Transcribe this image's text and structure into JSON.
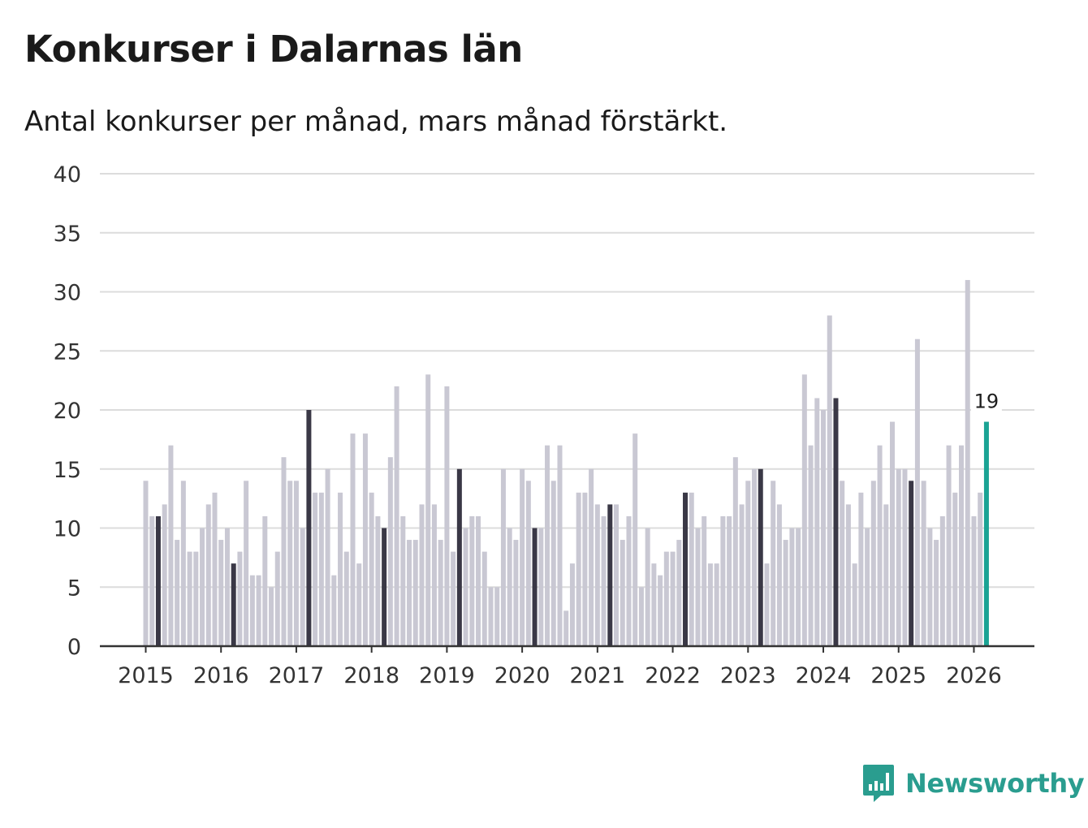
{
  "title": "Konkurser i Dalarnas län",
  "subtitle": "Antal konkurser per månad, mars månad förstärkt.",
  "brand": {
    "name": "Newsworthy",
    "icon": "newsworthy-logo-icon"
  },
  "colors": {
    "normal": "#c9c8d3",
    "march": "#3a3846",
    "latest": "#1aa394",
    "grid": "#dcdcdc",
    "axis": "#333333"
  },
  "chart_data": {
    "type": "bar",
    "title": "Konkurser i Dalarnas län",
    "subtitle": "Antal konkurser per månad, mars månad förstärkt.",
    "xlabel": "",
    "ylabel": "",
    "ylim": [
      0,
      40
    ],
    "yticks": [
      0,
      5,
      10,
      15,
      20,
      25,
      30,
      35,
      40
    ],
    "xtick_labels": [
      "2015",
      "2016",
      "2017",
      "2018",
      "2019",
      "2020",
      "2021",
      "2022",
      "2023",
      "2024",
      "2025",
      "2026"
    ],
    "start": "2015-01",
    "highlight": "March of each year",
    "latest_label": "19",
    "values": [
      14,
      11,
      11,
      12,
      17,
      9,
      14,
      8,
      8,
      10,
      12,
      13,
      9,
      10,
      7,
      8,
      14,
      6,
      6,
      11,
      5,
      8,
      16,
      14,
      14,
      10,
      20,
      13,
      13,
      15,
      6,
      13,
      8,
      18,
      7,
      18,
      13,
      11,
      10,
      16,
      22,
      11,
      9,
      9,
      12,
      23,
      12,
      9,
      22,
      8,
      15,
      10,
      11,
      11,
      8,
      5,
      5,
      15,
      10,
      9,
      15,
      14,
      10,
      10,
      17,
      14,
      17,
      3,
      7,
      13,
      13,
      15,
      12,
      11,
      12,
      12,
      9,
      11,
      18,
      5,
      10,
      7,
      6,
      8,
      8,
      9,
      13,
      13,
      10,
      11,
      7,
      7,
      11,
      11,
      16,
      12,
      14,
      15,
      15,
      7,
      14,
      12,
      9,
      10,
      10,
      23,
      17,
      21,
      20,
      28,
      21,
      14,
      12,
      7,
      13,
      10,
      14,
      17,
      12,
      19,
      15,
      15,
      14,
      26,
      14,
      10,
      9,
      11,
      17,
      13,
      17,
      31,
      11,
      13,
      19
    ]
  }
}
